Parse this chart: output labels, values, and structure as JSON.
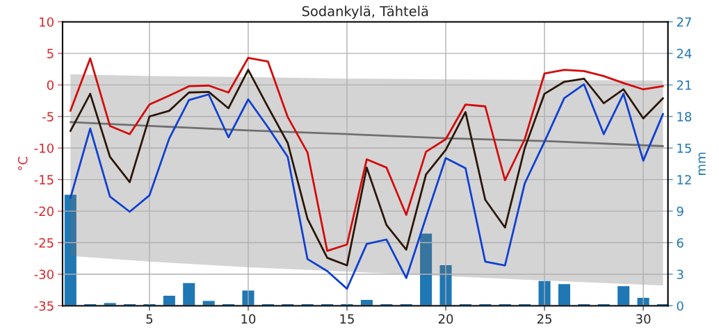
{
  "chart_data": {
    "type": "line",
    "title": "Sodankylä, Tähtelä",
    "ylabel": "°C",
    "y2label": "mm",
    "x": [
      1,
      2,
      3,
      4,
      5,
      6,
      7,
      8,
      9,
      10,
      11,
      12,
      13,
      14,
      15,
      16,
      17,
      18,
      19,
      20,
      21,
      22,
      23,
      24,
      25,
      26,
      27,
      28,
      29,
      30,
      31
    ],
    "series": [
      {
        "type": "bar",
        "axis": "y2",
        "color": "#1f77b4",
        "values": [
          10.6,
          0.2,
          0.3,
          0.2,
          0.2,
          1.0,
          2.2,
          0.5,
          0.2,
          1.5,
          0.2,
          0.2,
          0.2,
          0.2,
          0.2,
          0.6,
          0.2,
          0.2,
          6.9,
          3.9,
          0.2,
          0.2,
          0.2,
          0.2,
          2.4,
          2.1,
          0.2,
          0.2,
          1.9,
          0.8,
          0.2
        ]
      },
      {
        "color": "#707070",
        "x": [
          1,
          5,
          10,
          15,
          20,
          25,
          31
        ],
        "values": [
          -5.9,
          -6.5,
          -7.2,
          -7.8,
          -8.45,
          -8.9,
          -9.7
        ],
        "upper": [
          1.7,
          1.4,
          1.25,
          1.0,
          0.9,
          0.8,
          0.7
        ],
        "lower": [
          -27.1,
          -28.0,
          -28.9,
          -29.6,
          -30.3,
          -31.0,
          -31.8
        ]
      },
      {
        "color": "#d40b0b",
        "values": [
          -4.1,
          4.2,
          -6.5,
          -7.8,
          -3.1,
          -1.7,
          -0.2,
          -0.1,
          -1.2,
          4.3,
          3.7,
          -5.1,
          -10.7,
          -26.3,
          -25.3,
          -11.8,
          -13.1,
          -20.6,
          -10.6,
          -8.6,
          -3.1,
          -3.4,
          -15.1,
          -8.6,
          1.8,
          2.4,
          2.2,
          1.4,
          0.3,
          -0.7,
          -0.2
        ]
      },
      {
        "color": "#2b1608",
        "values": [
          -7.3,
          -1.4,
          -11.4,
          -15.4,
          -5.0,
          -4.1,
          -1.2,
          -1.1,
          -3.7,
          2.4,
          -3.5,
          -9.2,
          -21.2,
          -27.4,
          -28.6,
          -13.1,
          -22.2,
          -26.1,
          -14.2,
          -10.3,
          -4.3,
          -18.2,
          -22.6,
          -10.0,
          -1.4,
          0.5,
          1.0,
          -2.9,
          -0.7,
          -5.3,
          -2.1
        ]
      },
      {
        "color": "#1040d0",
        "values": [
          -17.9,
          -6.9,
          -17.7,
          -20.1,
          -17.5,
          -8.5,
          -2.4,
          -1.5,
          -8.3,
          -2.3,
          -6.7,
          -11.4,
          -27.6,
          -29.5,
          -32.3,
          -25.2,
          -24.5,
          -30.6,
          -21.0,
          -11.6,
          -13.2,
          -28.0,
          -28.6,
          -15.6,
          -9.0,
          -2.1,
          0.1,
          -7.8,
          -1.4,
          -12.0,
          -4.6
        ]
      }
    ],
    "xlim": [
      0.6,
      31.25
    ],
    "xticks": [
      5,
      10,
      15,
      20,
      25,
      30
    ],
    "ylim": [
      -35,
      10
    ],
    "yticks": [
      -35,
      -30,
      -25,
      -20,
      -15,
      -10,
      -5,
      0,
      5,
      10
    ],
    "y2lim": [
      0,
      27
    ],
    "y2ticks": [
      0,
      3,
      6,
      9,
      12,
      15,
      18,
      21,
      24,
      27
    ],
    "grid": true
  }
}
